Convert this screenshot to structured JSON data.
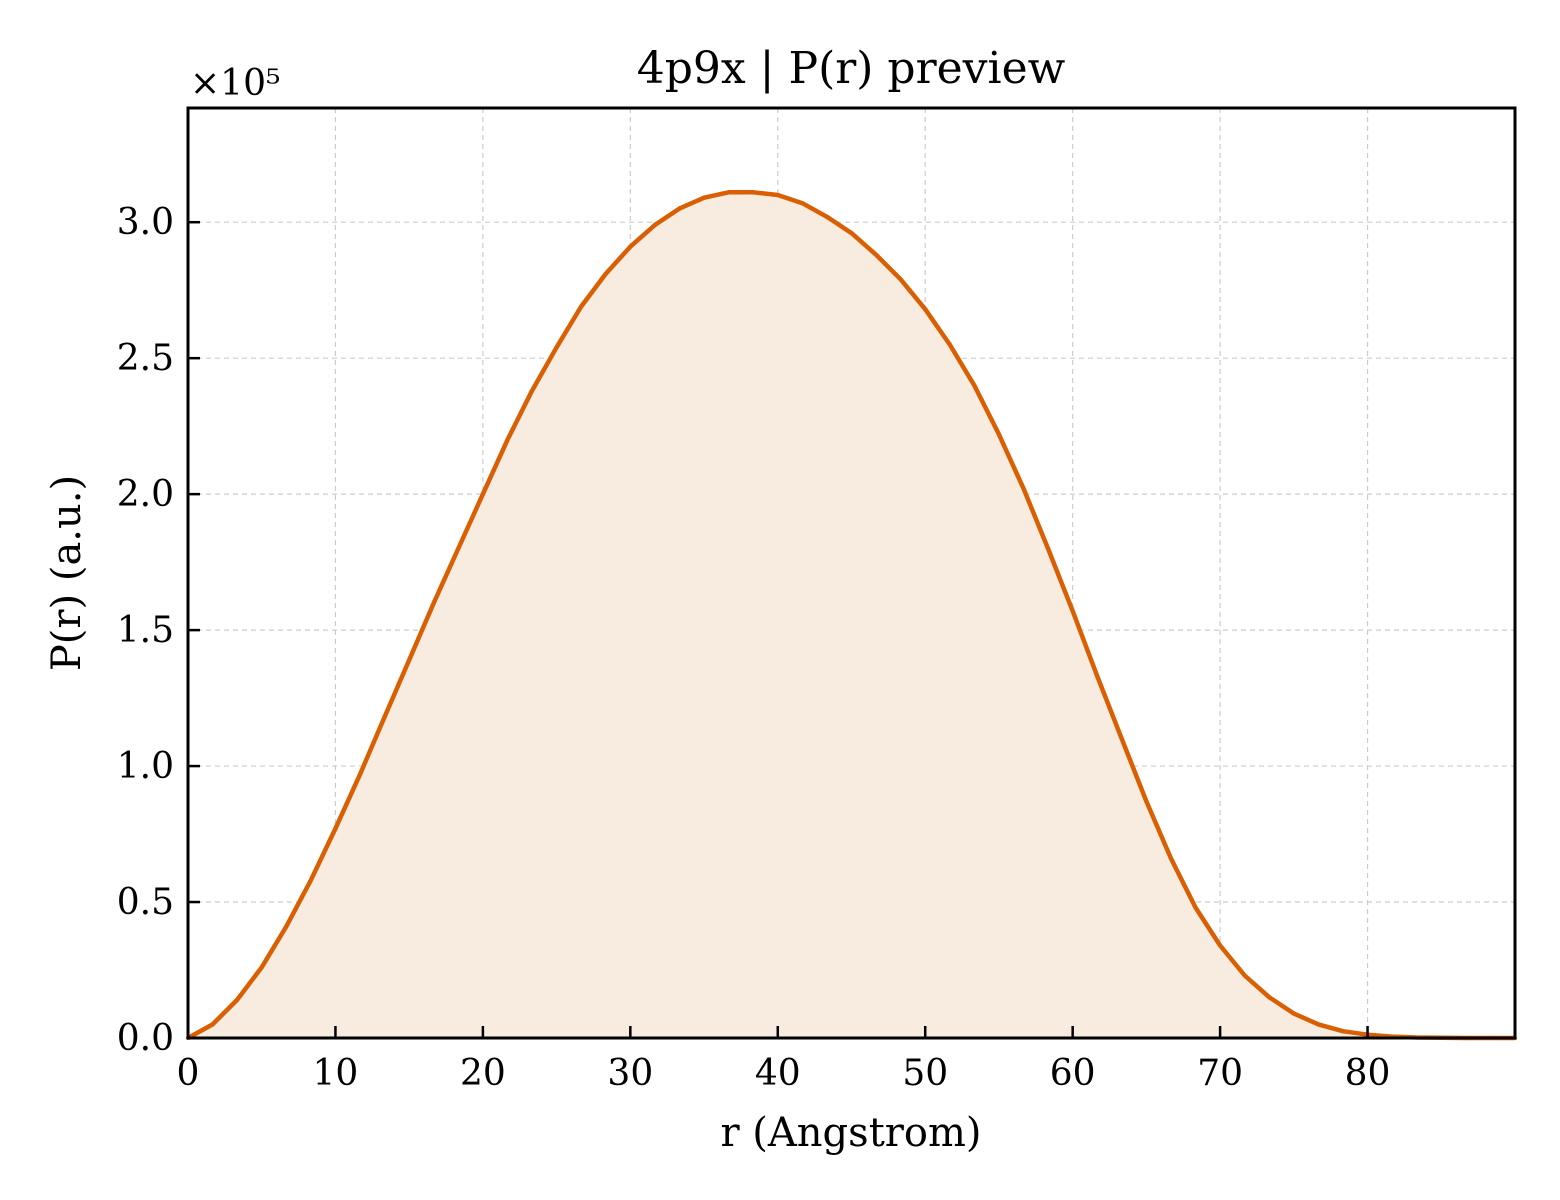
{
  "chart_data": {
    "type": "area",
    "title": "4p9x | P(r) preview",
    "xlabel": "r (Angstrom)",
    "ylabel": "P(r) (a.u.)",
    "y_multiplier_label": "×10⁵",
    "xlim": [
      0,
      90
    ],
    "ylim": [
      0,
      3.42
    ],
    "x_ticks": [
      0,
      10,
      20,
      30,
      40,
      50,
      60,
      70,
      80
    ],
    "x_tick_labels": [
      "0",
      "10",
      "20",
      "30",
      "40",
      "50",
      "60",
      "70",
      "80"
    ],
    "y_ticks": [
      0,
      0.5,
      1.0,
      1.5,
      2.0,
      2.5,
      3.0
    ],
    "y_tick_labels": [
      "0.0",
      "0.5",
      "1.0",
      "1.5",
      "2.0",
      "2.5",
      "3.0"
    ],
    "grid": true,
    "legend": "none",
    "line_color": "#d95f02",
    "fill_color": "#f8ebe0",
    "series": [
      {
        "x": [
          0,
          1.67,
          3.33,
          5.0,
          6.67,
          8.33,
          10.0,
          11.67,
          13.33,
          15.0,
          16.67,
          18.33,
          20.0,
          21.67,
          23.33,
          25.0,
          26.67,
          28.33,
          30.0,
          31.67,
          33.33,
          35.0,
          36.67,
          38.33,
          40.0,
          41.67,
          43.33,
          45.0,
          46.67,
          48.33,
          50.0,
          51.67,
          53.33,
          55.0,
          56.67,
          58.33,
          60.0,
          61.67,
          63.33,
          65.0,
          66.67,
          68.33,
          70.0,
          71.67,
          73.33,
          75.0,
          76.67,
          78.33,
          80.0,
          81.67,
          83.33,
          85.0,
          86.67,
          88.33,
          90.0
        ],
        "y": [
          0.0,
          0.05,
          0.14,
          0.26,
          0.41,
          0.58,
          0.77,
          0.97,
          1.18,
          1.39,
          1.6,
          1.8,
          2.0,
          2.2,
          2.38,
          2.54,
          2.69,
          2.81,
          2.91,
          2.99,
          3.05,
          3.09,
          3.11,
          3.11,
          3.1,
          3.07,
          3.02,
          2.96,
          2.88,
          2.79,
          2.68,
          2.55,
          2.4,
          2.22,
          2.02,
          1.8,
          1.57,
          1.33,
          1.1,
          0.87,
          0.66,
          0.48,
          0.34,
          0.23,
          0.15,
          0.09,
          0.05,
          0.025,
          0.012,
          0.005,
          0.002,
          0.001,
          0.0,
          0.0,
          0.0
        ]
      }
    ]
  }
}
